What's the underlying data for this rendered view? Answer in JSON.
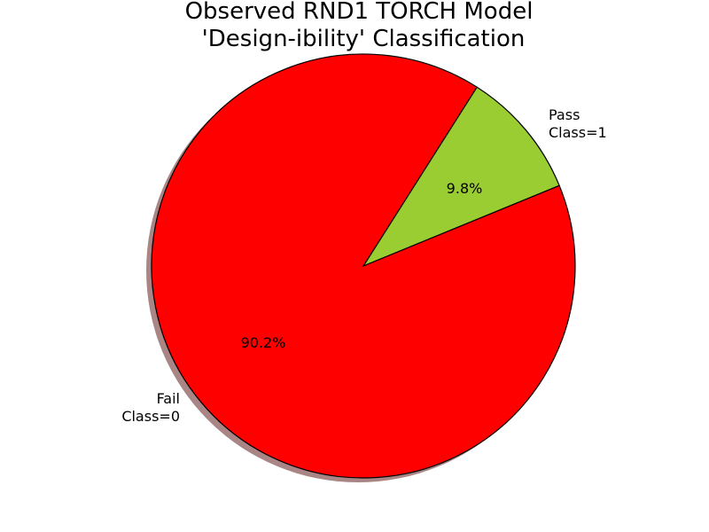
{
  "chart_data": {
    "type": "pie",
    "title_lines": [
      "Observed RND1 TORCH Model",
      "'Design-ibility' Classification"
    ],
    "slices": [
      {
        "label_lines": [
          "Pass",
          "Class=1"
        ],
        "value": 9.8,
        "pct_label": "9.8%",
        "color": "#9acd32"
      },
      {
        "label_lines": [
          "Fail",
          "Class=0"
        ],
        "value": 90.2,
        "pct_label": "90.2%",
        "color": "#ff0000"
      }
    ],
    "shadow": true,
    "edge_color": "#000000",
    "shadow_color": "#9a7070"
  }
}
